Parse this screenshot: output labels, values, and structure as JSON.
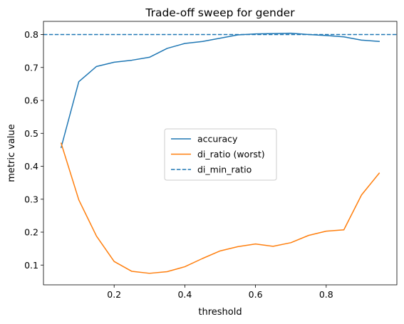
{
  "chart_data": {
    "type": "line",
    "title": "Trade-off sweep for gender",
    "xlabel": "threshold",
    "ylabel": "metric value",
    "xlim": [
      0.0,
      1.0
    ],
    "ylim": [
      0.04,
      0.84
    ],
    "xticks": [
      0.2,
      0.4,
      0.6,
      0.8
    ],
    "xtick_labels": [
      "0.2",
      "0.4",
      "0.6",
      "0.8"
    ],
    "yticks": [
      0.1,
      0.2,
      0.3,
      0.4,
      0.5,
      0.6,
      0.7,
      0.8
    ],
    "ytick_labels": [
      "0.1",
      "0.2",
      "0.3",
      "0.4",
      "0.5",
      "0.6",
      "0.7",
      "0.8"
    ],
    "grid": false,
    "legend_position": "center",
    "x": [
      0.05,
      0.1,
      0.15,
      0.2,
      0.25,
      0.3,
      0.35,
      0.4,
      0.45,
      0.5,
      0.55,
      0.6,
      0.65,
      0.7,
      0.75,
      0.8,
      0.85,
      0.9,
      0.95
    ],
    "series": [
      {
        "name": "accuracy",
        "color": "#1f77b4",
        "style": "solid",
        "values": [
          0.457,
          0.657,
          0.703,
          0.716,
          0.722,
          0.731,
          0.758,
          0.773,
          0.779,
          0.789,
          0.799,
          0.802,
          0.803,
          0.804,
          0.8,
          0.797,
          0.793,
          0.783,
          0.779
        ]
      },
      {
        "name": "di_ratio (worst)",
        "color": "#ff7f0e",
        "style": "solid",
        "values": [
          0.47,
          0.298,
          0.188,
          0.111,
          0.081,
          0.075,
          0.08,
          0.095,
          0.12,
          0.143,
          0.156,
          0.164,
          0.157,
          0.168,
          0.19,
          0.203,
          0.207,
          0.313,
          0.379
        ]
      },
      {
        "name": "di_min_ratio",
        "color": "#1f77b4",
        "style": "dashed",
        "horizontal_line": 0.8
      }
    ]
  }
}
